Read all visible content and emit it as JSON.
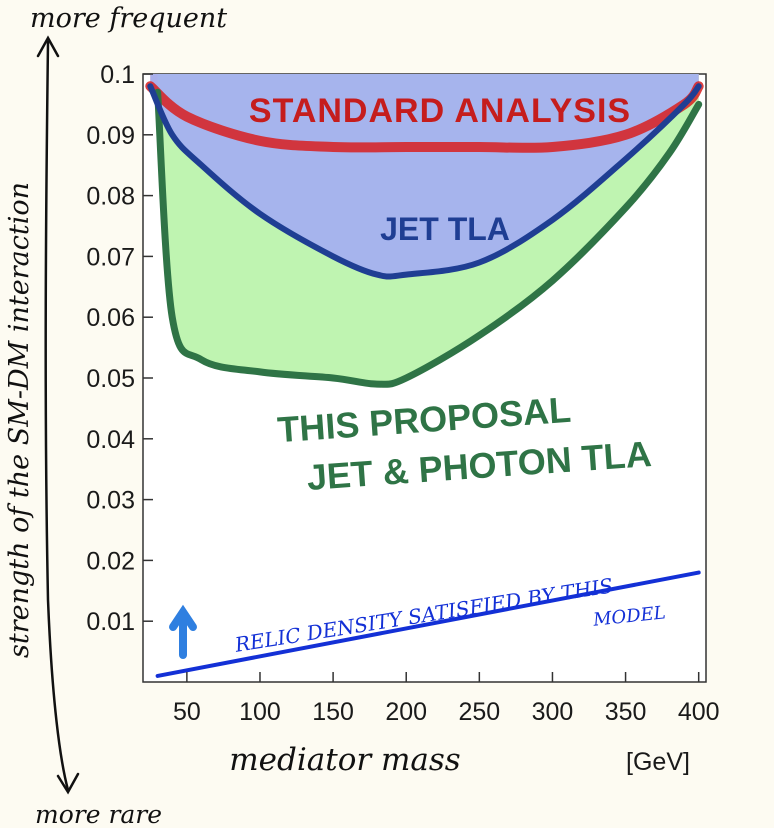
{
  "chart_data": {
    "type": "area",
    "xlabel": "mediator mass",
    "xunit": "[GeV]",
    "ylabel": "strength of the SM-DM interaction",
    "y_top_note": "more frequent",
    "y_bottom_note": "more rare",
    "xlim": [
      20,
      405
    ],
    "ylim": [
      0,
      0.1
    ],
    "x_ticks": [
      50,
      100,
      150,
      200,
      250,
      300,
      350,
      400
    ],
    "y_ticks": [
      0.01,
      0.02,
      0.03,
      0.04,
      0.05,
      0.06,
      0.07,
      0.08,
      0.09,
      0.1
    ],
    "series": [
      {
        "name": "STANDARD ANALYSIS",
        "color": "#d81e1e",
        "fill": "#ef8f86",
        "x": [
          25,
          50,
          100,
          150,
          200,
          250,
          300,
          350,
          390,
          400
        ],
        "y": [
          0.098,
          0.093,
          0.089,
          0.088,
          0.088,
          0.088,
          0.088,
          0.09,
          0.095,
          0.098
        ]
      },
      {
        "name": "JET TLA",
        "color": "#1f3e93",
        "fill": "#a4b0f0",
        "x": [
          25,
          40,
          60,
          100,
          150,
          180,
          200,
          250,
          300,
          350,
          390,
          400
        ],
        "y": [
          0.098,
          0.09,
          0.085,
          0.077,
          0.07,
          0.067,
          0.067,
          0.069,
          0.076,
          0.086,
          0.095,
          0.098
        ]
      },
      {
        "name": "THIS PROPOSAL JET & PHOTON TLA",
        "color": "#2f7446",
        "fill": "#bcf3ad",
        "x": [
          30,
          40,
          60,
          100,
          150,
          180,
          200,
          250,
          300,
          350,
          380,
          400
        ],
        "y": [
          0.097,
          0.06,
          0.053,
          0.051,
          0.05,
          0.049,
          0.05,
          0.057,
          0.066,
          0.078,
          0.087,
          0.095
        ]
      },
      {
        "name": "RELIC DENSITY SATISFIED BY THIS MODEL",
        "color": "#1330d6",
        "x": [
          30,
          400
        ],
        "y": [
          0.001,
          0.018
        ]
      }
    ],
    "annotations": {
      "standard_analysis": "STANDARD ANALYSIS",
      "jet_tla": "JET TLA",
      "proposal_line1": "THIS PROPOSAL",
      "proposal_line2": "JET & PHOTON TLA",
      "relic_line1": "RELIC DENSITY SATISFIED BY THIS",
      "relic_line2": "MODEL"
    }
  }
}
